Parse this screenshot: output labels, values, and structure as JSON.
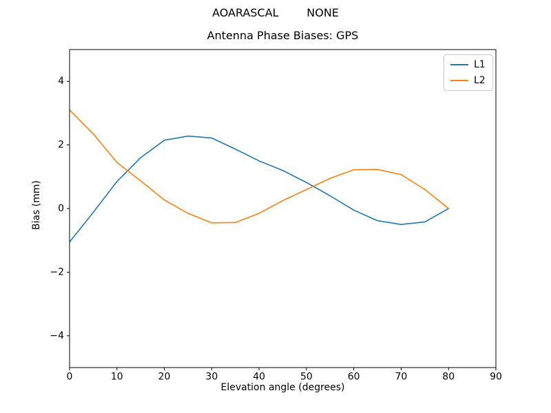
{
  "figure": {
    "suptitle": "AOARASCAL        NONE",
    "title": "Antenna Phase Biases: GPS",
    "xlabel": "Elevation angle (degrees)",
    "ylabel": "Bias (mm)"
  },
  "chart_data": {
    "type": "line",
    "title": "Antenna Phase Biases: GPS",
    "xlabel": "Elevation angle (degrees)",
    "ylabel": "Bias (mm)",
    "xlim": [
      0,
      90
    ],
    "ylim": [
      -5,
      5
    ],
    "x_ticks": [
      0,
      10,
      20,
      30,
      40,
      50,
      60,
      70,
      80,
      90
    ],
    "y_ticks": [
      -4,
      -2,
      0,
      2,
      4
    ],
    "grid": false,
    "legend_position": "upper right",
    "x": [
      0,
      5,
      10,
      15,
      20,
      25,
      30,
      35,
      40,
      45,
      50,
      55,
      60,
      65,
      70,
      75,
      80
    ],
    "series": [
      {
        "name": "L1",
        "color": "#1f77b4",
        "values": [
          -1.05,
          -0.12,
          0.85,
          1.6,
          2.15,
          2.28,
          2.22,
          1.87,
          1.5,
          1.2,
          0.82,
          0.4,
          -0.05,
          -0.38,
          -0.5,
          -0.42,
          0.0
        ]
      },
      {
        "name": "L2",
        "color": "#ff7f0e",
        "values": [
          3.1,
          2.35,
          1.45,
          0.87,
          0.27,
          -0.15,
          -0.45,
          -0.44,
          -0.15,
          0.25,
          0.6,
          0.95,
          1.22,
          1.23,
          1.07,
          0.6,
          0.0
        ]
      }
    ]
  }
}
